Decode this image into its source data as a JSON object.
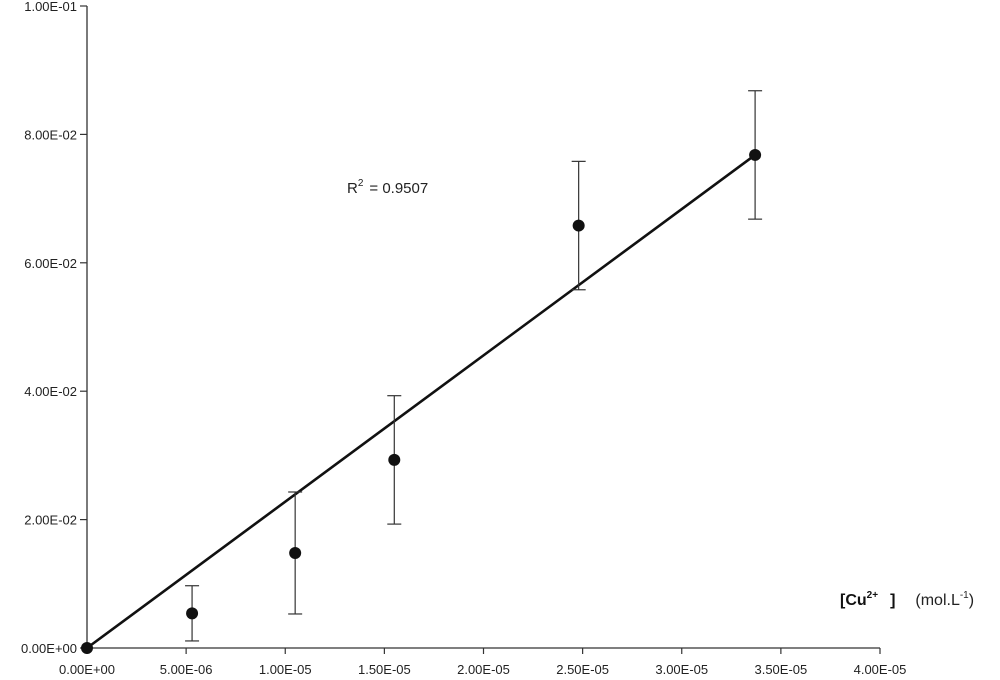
{
  "chart_data": {
    "type": "scatter",
    "x": [
      0,
      5.3e-06,
      1.05e-05,
      1.55e-05,
      2.48e-05,
      3.37e-05
    ],
    "y": [
      0,
      0.0054,
      0.0148,
      0.0293,
      0.0658,
      0.0768
    ],
    "y_error": [
      0,
      0.0043,
      0.0095,
      0.01,
      0.01,
      0.01
    ],
    "fit_line": {
      "x": [
        0,
        3.37e-05
      ],
      "y": [
        0,
        0.0768
      ]
    },
    "xlim": [
      0,
      4e-05
    ],
    "ylim": [
      0,
      0.1
    ],
    "x_tick_labels": [
      "0.00E+00",
      "5.00E-06",
      "1.00E-05",
      "1.50E-05",
      "2.00E-05",
      "2.50E-05",
      "3.00E-05",
      "3.50E-05",
      "4.00E-05"
    ],
    "y_tick_labels": [
      "0.00E+00",
      "2.00E-02",
      "4.00E-02",
      "6.00E-02",
      "8.00E-02",
      "1.00E-01"
    ],
    "xlabel_main": "[Cu",
    "xlabel_sup": "2+",
    "xlabel_close": "]",
    "xlabel_unit_main": "(mol.L",
    "xlabel_unit_sup": "-1",
    "xlabel_unit_close": ")",
    "annotation_main": "R",
    "annotation_sup": "2",
    "annotation_value": "= 0.9507",
    "grid": false,
    "colors": {
      "marker": "#111111",
      "line": "#111111",
      "axis": "#333333"
    }
  }
}
